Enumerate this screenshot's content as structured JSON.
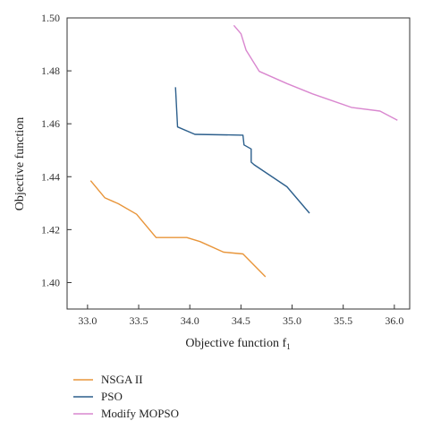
{
  "chart_data": {
    "type": "line",
    "xlabel": "Objective function f",
    "xlabel_subscript": "1",
    "ylabel": "Objective function",
    "xlim": [
      32.8,
      36.15
    ],
    "ylim": [
      1.39,
      1.5
    ],
    "xticks": [
      "33.0",
      "33.5",
      "34.0",
      "34.5",
      "35.0",
      "35.5",
      "36.0"
    ],
    "yticks": [
      "1.40",
      "1.42",
      "1.44",
      "1.46",
      "1.48",
      "1.50"
    ],
    "grid": false,
    "legend_position": "bottom",
    "series": [
      {
        "name": "NSGA II",
        "color": "#e8953a",
        "x": [
          33.03,
          33.17,
          33.3,
          33.48,
          33.67,
          33.97,
          34.1,
          34.33,
          34.52,
          34.74
        ],
        "y": [
          1.4385,
          1.432,
          1.4298,
          1.4258,
          1.417,
          1.417,
          1.4155,
          1.4115,
          1.4108,
          1.4022
        ]
      },
      {
        "name": "PSO",
        "color": "#2c5f8c",
        "x": [
          33.86,
          33.88,
          34.05,
          34.52,
          34.53,
          34.6,
          34.6,
          34.63,
          34.95,
          35.17
        ],
        "y": [
          1.4738,
          1.4588,
          1.456,
          1.4557,
          1.452,
          1.4505,
          1.4455,
          1.4445,
          1.4362,
          1.4262
        ]
      },
      {
        "name": "Modify MOPSO",
        "color": "#d987cf",
        "x": [
          34.43,
          34.5,
          34.55,
          34.68,
          34.95,
          35.2,
          35.58,
          35.86,
          36.03
        ],
        "y": [
          1.4972,
          1.494,
          1.4878,
          1.4798,
          1.4752,
          1.4713,
          1.4662,
          1.4648,
          1.4613
        ]
      }
    ]
  }
}
